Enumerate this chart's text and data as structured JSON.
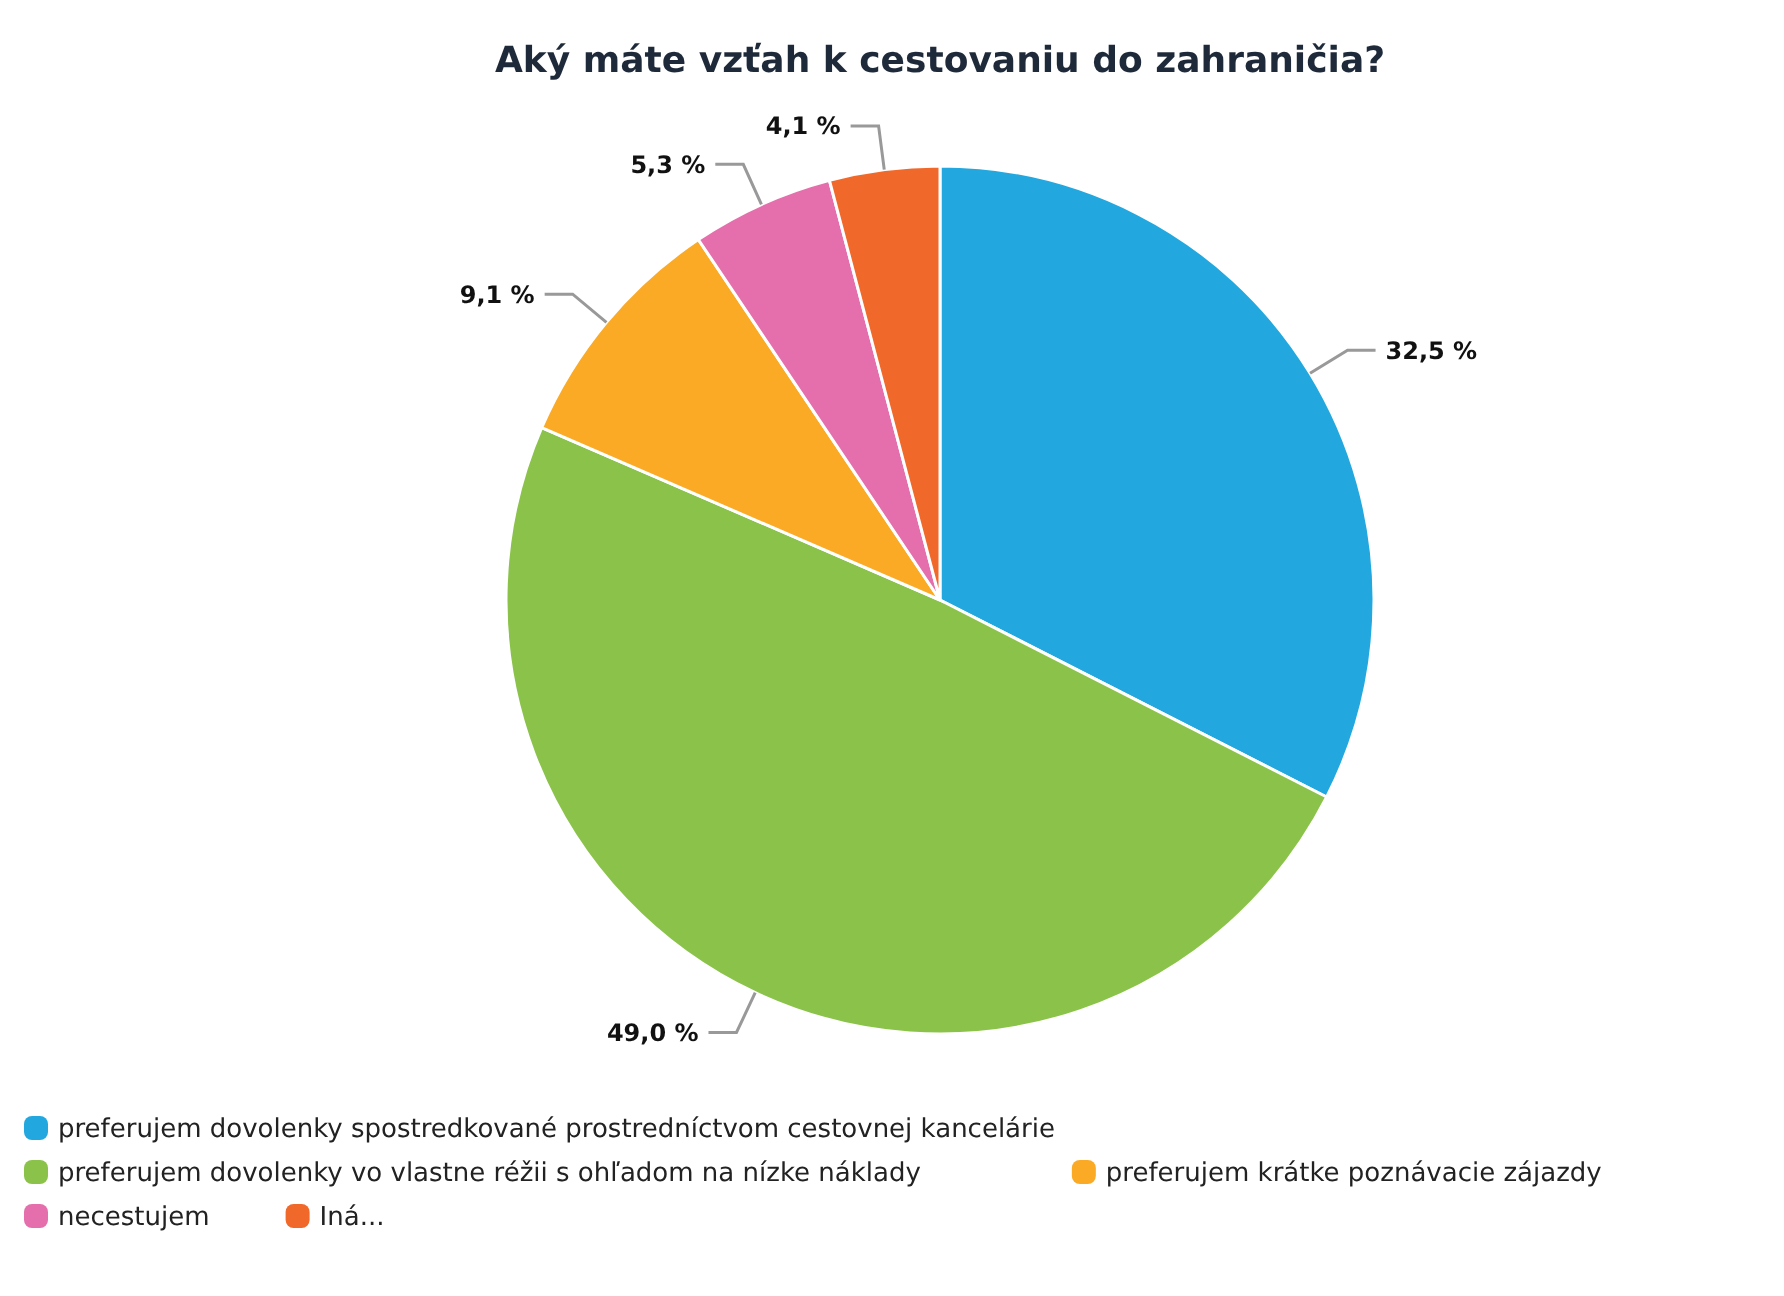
{
  "chart_data": {
    "type": "pie",
    "title": "Aký máte vzťah k cestovaniu do zahraničia?",
    "categories": [
      "preferujem dovolenky spostredkované prostredníctvom cestovnej kancelárie",
      "preferujem dovolenky vo vlastne réžii s ohľadom na nízke náklady",
      "preferujem krátke poznávacie zájazdy",
      "necestujem",
      "Iná..."
    ],
    "values": [
      32.5,
      49.0,
      9.1,
      5.3,
      4.1
    ],
    "colors": [
      "#22a8df",
      "#8bc34a",
      "#fbaa26",
      "#e46fac",
      "#f0682a"
    ],
    "value_labels": [
      "32,5 %",
      "49,0 %",
      "9,1 %",
      "5,3 %",
      "4,1 %"
    ],
    "legend": "bottom"
  }
}
